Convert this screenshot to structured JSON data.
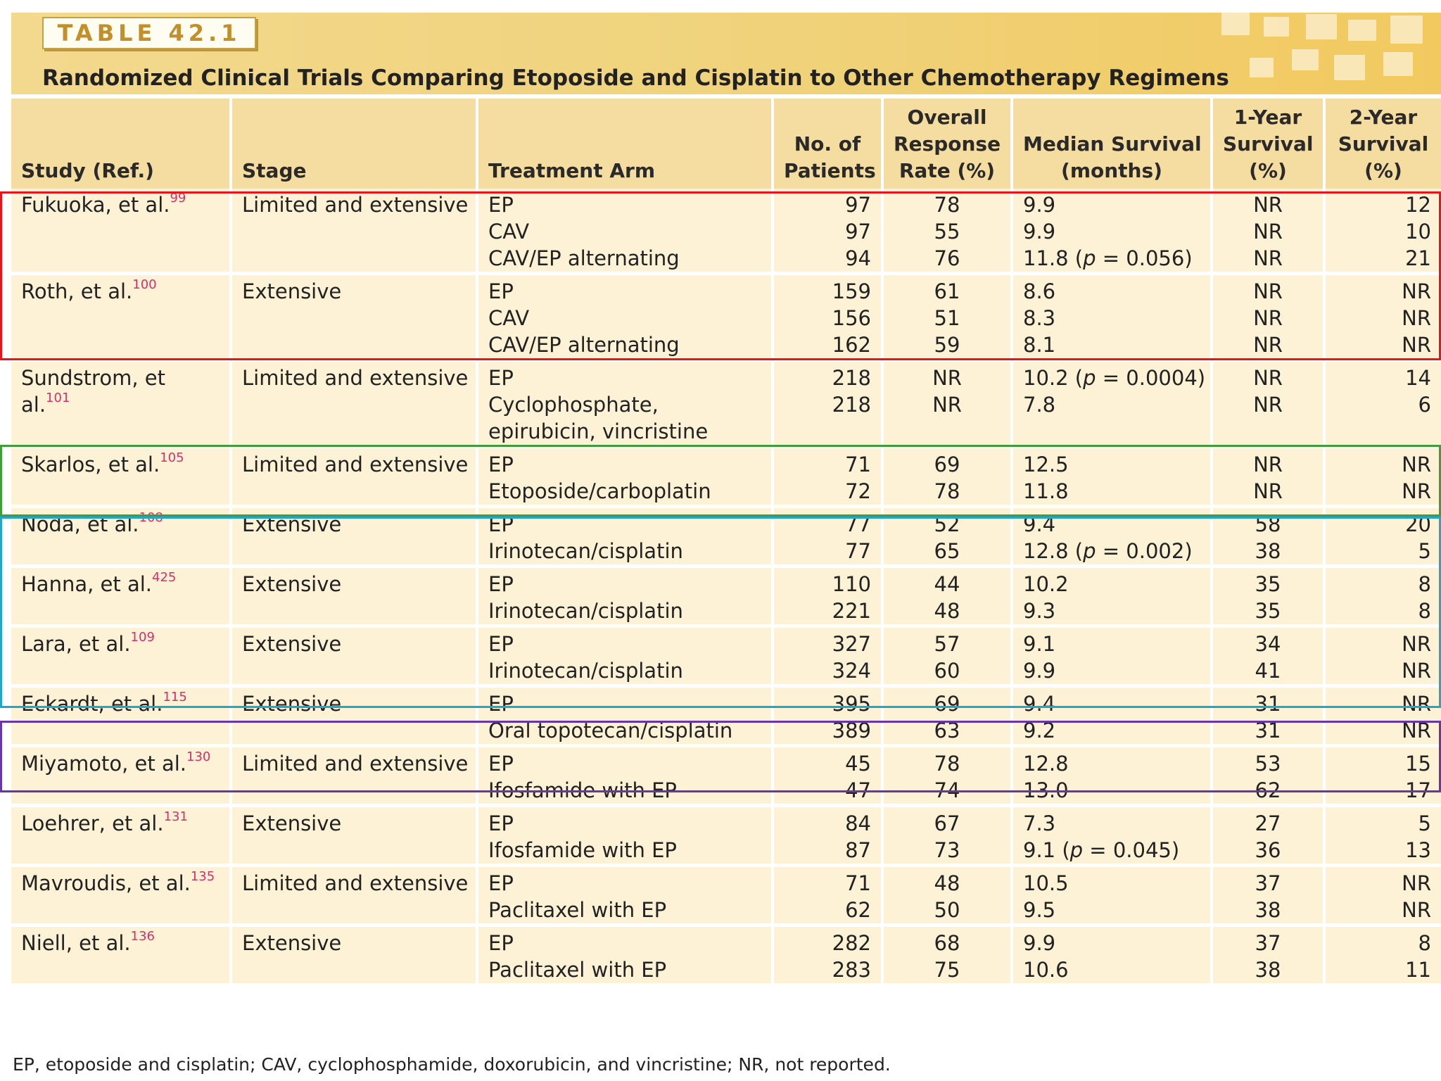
{
  "header": {
    "label": "TABLE 42.1",
    "title": "Randomized Clinical Trials Comparing Etoposide and Cisplatin to Other Chemotherapy Regimens"
  },
  "columns": [
    {
      "lines": [
        "Study (Ref.)"
      ]
    },
    {
      "lines": [
        "Stage"
      ]
    },
    {
      "lines": [
        "Treatment Arm"
      ]
    },
    {
      "lines": [
        "No. of",
        "Patients"
      ]
    },
    {
      "lines": [
        "Overall",
        "Response",
        "Rate (%)"
      ]
    },
    {
      "lines": [
        "Median Survival",
        "(months)"
      ]
    },
    {
      "lines": [
        "1-Year",
        "Survival",
        "(%)"
      ]
    },
    {
      "lines": [
        "2-Year",
        "Survival",
        "(%)"
      ]
    }
  ],
  "rows": [
    {
      "study": "Fukuoka, et al.",
      "ref": "99",
      "stage": "Limited and extensive",
      "arms": [
        {
          "treatment": "EP",
          "patients": "97",
          "response": "78",
          "median": "9.9",
          "p": "",
          "y1": "NR",
          "y2": "12"
        },
        {
          "treatment": "CAV",
          "patients": "97",
          "response": "55",
          "median": "9.9",
          "p": "",
          "y1": "NR",
          "y2": "10"
        },
        {
          "treatment": "CAV/EP alternating",
          "patients": "94",
          "response": "76",
          "median": "11.8",
          "p": "0.056",
          "y1": "NR",
          "y2": "21"
        }
      ]
    },
    {
      "study": "Roth, et al.",
      "ref": "100",
      "stage": "Extensive",
      "arms": [
        {
          "treatment": "EP",
          "patients": "159",
          "response": "61",
          "median": "8.6",
          "p": "",
          "y1": "NR",
          "y2": "NR"
        },
        {
          "treatment": "CAV",
          "patients": "156",
          "response": "51",
          "median": "8.3",
          "p": "",
          "y1": "NR",
          "y2": "NR"
        },
        {
          "treatment": "CAV/EP alternating",
          "patients": "162",
          "response": "59",
          "median": "8.1",
          "p": "",
          "y1": "NR",
          "y2": "NR"
        }
      ]
    },
    {
      "study": "Sundstrom, et al.",
      "ref": "101",
      "stage": "Limited and extensive",
      "arms": [
        {
          "treatment": "EP",
          "patients": "218",
          "response": "NR",
          "median": "10.2",
          "p": "0.0004",
          "y1": "NR",
          "y2": "14"
        },
        {
          "treatment": "Cyclophosphate,",
          "patients": "218",
          "response": "NR",
          "median": "7.8",
          "p": "",
          "y1": "NR",
          "y2": "6"
        },
        {
          "treatment": "epirubicin, vincristine",
          "patients": "",
          "response": "",
          "median": "",
          "p": "",
          "y1": "",
          "y2": ""
        }
      ]
    },
    {
      "study": "Skarlos, et al.",
      "ref": "105",
      "stage": "Limited and extensive",
      "arms": [
        {
          "treatment": "EP",
          "patients": "71",
          "response": "69",
          "median": "12.5",
          "p": "",
          "y1": "NR",
          "y2": "NR"
        },
        {
          "treatment": "Etoposide/carboplatin",
          "patients": "72",
          "response": "78",
          "median": "11.8",
          "p": "",
          "y1": "NR",
          "y2": "NR"
        }
      ]
    },
    {
      "study": "Noda, et al.",
      "ref": "108",
      "stage": "Extensive",
      "arms": [
        {
          "treatment": "EP",
          "patients": "77",
          "response": "52",
          "median": "9.4",
          "p": "",
          "y1": "58",
          "y2": "20"
        },
        {
          "treatment": "Irinotecan/cisplatin",
          "patients": "77",
          "response": "65",
          "median": "12.8",
          "p": "0.002",
          "y1": "38",
          "y2": "5"
        }
      ]
    },
    {
      "study": "Hanna, et al.",
      "ref": "425",
      "stage": "Extensive",
      "arms": [
        {
          "treatment": "EP",
          "patients": "110",
          "response": "44",
          "median": "10.2",
          "p": "",
          "y1": "35",
          "y2": "8"
        },
        {
          "treatment": "Irinotecan/cisplatin",
          "patients": "221",
          "response": "48",
          "median": "9.3",
          "p": "",
          "y1": "35",
          "y2": "8"
        }
      ]
    },
    {
      "study": "Lara, et al.",
      "ref": "109",
      "stage": "Extensive",
      "arms": [
        {
          "treatment": "EP",
          "patients": "327",
          "response": "57",
          "median": "9.1",
          "p": "",
          "y1": "34",
          "y2": "NR"
        },
        {
          "treatment": "Irinotecan/cisplatin",
          "patients": "324",
          "response": "60",
          "median": "9.9",
          "p": "",
          "y1": "41",
          "y2": "NR"
        }
      ]
    },
    {
      "study": "Eckardt, et al.",
      "ref": "115",
      "stage": "Extensive",
      "arms": [
        {
          "treatment": "EP",
          "patients": "395",
          "response": "69",
          "median": "9.4",
          "p": "",
          "y1": "31",
          "y2": "NR"
        },
        {
          "treatment": "Oral topotecan/cisplatin",
          "patients": "389",
          "response": "63",
          "median": "9.2",
          "p": "",
          "y1": "31",
          "y2": "NR"
        }
      ]
    },
    {
      "study": "Miyamoto, et al.",
      "ref": "130",
      "stage": "Limited and extensive",
      "arms": [
        {
          "treatment": "EP",
          "patients": "45",
          "response": "78",
          "median": "12.8",
          "p": "",
          "y1": "53",
          "y2": "15"
        },
        {
          "treatment": "Ifosfamide with EP",
          "patients": "47",
          "response": "74",
          "median": "13.0",
          "p": "",
          "y1": "62",
          "y2": "17"
        }
      ]
    },
    {
      "study": "Loehrer, et al.",
      "ref": "131",
      "stage": "Extensive",
      "arms": [
        {
          "treatment": "EP",
          "patients": "84",
          "response": "67",
          "median": "7.3",
          "p": "",
          "y1": "27",
          "y2": "5"
        },
        {
          "treatment": "Ifosfamide with EP",
          "patients": "87",
          "response": "73",
          "median": "9.1",
          "p": "0.045",
          "y1": "36",
          "y2": "13"
        }
      ]
    },
    {
      "study": "Mavroudis, et al.",
      "ref": "135",
      "stage": "Limited and extensive",
      "arms": [
        {
          "treatment": "EP",
          "patients": "71",
          "response": "48",
          "median": "10.5",
          "p": "",
          "y1": "37",
          "y2": "NR"
        },
        {
          "treatment": "Paclitaxel with EP",
          "patients": "62",
          "response": "50",
          "median": "9.5",
          "p": "",
          "y1": "38",
          "y2": "NR"
        }
      ]
    },
    {
      "study": "Niell, et al.",
      "ref": "136",
      "stage": "Extensive",
      "arms": [
        {
          "treatment": "EP",
          "patients": "282",
          "response": "68",
          "median": "9.9",
          "p": "",
          "y1": "37",
          "y2": "8"
        },
        {
          "treatment": "Paclitaxel with EP",
          "patients": "283",
          "response": "75",
          "median": "10.6",
          "p": "",
          "y1": "38",
          "y2": "11"
        }
      ]
    }
  ],
  "footnote": "EP, etoposide and cisplatin; CAV, cyclophosphamide, doxorubicin, and vincristine; NR, not reported.",
  "p_prefix": "p",
  "colors": {
    "red": "#e8141b",
    "green": "#3f9e36",
    "cyan": "#22a6c9",
    "purple": "#6a35a8"
  }
}
